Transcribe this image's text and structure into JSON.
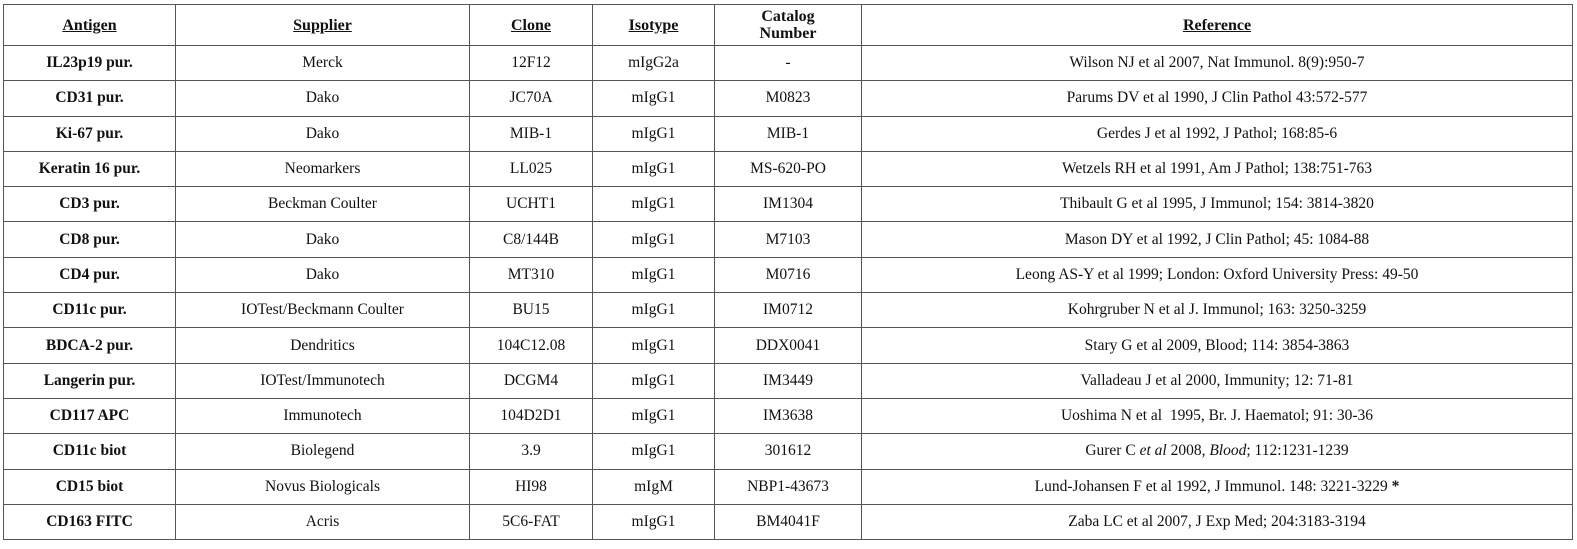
{
  "headers": [
    "Antigen",
    "Supplier",
    "Clone",
    "Isotype",
    "Catalog Number",
    "Reference"
  ],
  "rows": [
    {
      "antigen": "IL23p19 pur.",
      "supplier": "Merck",
      "clone": "12F12",
      "isotype": "mIgG2a",
      "catalog": "-",
      "reference": [
        {
          "text": "Wilson NJ et al 2007, Nat Immunol. 8(9):950-7"
        }
      ]
    },
    {
      "antigen": "CD31 pur.",
      "supplier": "Dako",
      "clone": "JC70A",
      "isotype": "mIgG1",
      "catalog": "M0823",
      "reference": [
        {
          "text": "Parums DV et al 1990, J Clin Pathol 43:572-577"
        }
      ]
    },
    {
      "antigen": "Ki-67 pur.",
      "supplier": "Dako",
      "clone": "MIB-1",
      "isotype": "mIgG1",
      "catalog": "MIB-1",
      "reference": [
        {
          "text": "Gerdes J et al 1992, J Pathol; 168:85-6"
        }
      ]
    },
    {
      "antigen": "Keratin 16 pur.",
      "supplier": "Neomarkers",
      "clone": "LL025",
      "isotype": "mIgG1",
      "catalog": "MS-620-PO",
      "reference": [
        {
          "text": "Wetzels RH et al 1991, Am J Pathol; 138:751-763"
        }
      ]
    },
    {
      "antigen": "CD3 pur.",
      "supplier": "Beckman Coulter",
      "clone": "UCHT1",
      "isotype": "mIgG1",
      "catalog": "IM1304",
      "reference": [
        {
          "text": "Thibault G et al 1995, J Immunol; 154: 3814-3820"
        }
      ]
    },
    {
      "antigen": "CD8 pur.",
      "supplier": "Dako",
      "clone": "C8/144B",
      "isotype": "mIgG1",
      "catalog": "M7103",
      "reference": [
        {
          "text": "Mason DY et al 1992, J Clin Pathol; 45: 1084-88"
        }
      ]
    },
    {
      "antigen": "CD4 pur.",
      "supplier": "Dako",
      "clone": "MT310",
      "isotype": "mIgG1",
      "catalog": "M0716",
      "reference": [
        {
          "text": "Leong AS-Y et al 1999; London: Oxford University Press: 49-50"
        }
      ]
    },
    {
      "antigen": "CD11c pur.",
      "supplier": "IOTest/Beckmann Coulter",
      "clone": "BU15",
      "isotype": "mIgG1",
      "catalog": "IM0712",
      "reference": [
        {
          "text": "Kohrgruber N et al J. Immunol; 163: 3250-3259"
        }
      ]
    },
    {
      "antigen": "BDCA-2 pur.",
      "supplier": "Dendritics",
      "clone": "104C12.08",
      "isotype": "mIgG1",
      "catalog": "DDX0041",
      "reference": [
        {
          "text": "Stary G et al 2009, Blood; 114: 3854-3863"
        }
      ]
    },
    {
      "antigen": "Langerin pur.",
      "supplier": "IOTest/Immunotech",
      "clone": "DCGM4",
      "isotype": "mIgG1",
      "catalog": "IM3449",
      "reference": [
        {
          "text": "Valladeau J et al 2000, Immunity; 12: 71-81"
        }
      ]
    },
    {
      "antigen": "CD117 APC",
      "supplier": "Immunotech",
      "clone": "104D2D1",
      "isotype": "mIgG1",
      "catalog": "IM3638",
      "reference": [
        {
          "text": "Uoshima N et al  1995, Br. J. Haematol; 91: 30-36"
        }
      ]
    },
    {
      "antigen": "CD11c biot",
      "supplier": "Biolegend",
      "clone": "3.9",
      "isotype": "mIgG1",
      "catalog": "301612",
      "reference": [
        {
          "text": "Gurer C "
        },
        {
          "text": "et al",
          "italic": true
        },
        {
          "text": " 2008, "
        },
        {
          "text": "Blood",
          "italic": true
        },
        {
          "text": "; 112:1231-1239"
        }
      ]
    },
    {
      "antigen": "CD15 biot",
      "supplier": "Novus Biologicals",
      "clone": "HI98",
      "isotype": "mIgM",
      "catalog": "NBP1-43673",
      "reference": [
        {
          "text": "Lund-Johansen F et al 1992, J Immunol. 148: 3221-3229 "
        },
        {
          "text": "*",
          "bold": true
        }
      ]
    },
    {
      "antigen": "CD163 FITC",
      "supplier": "Acris",
      "clone": "5C6-FAT",
      "isotype": "mIgG1",
      "catalog": "BM4041F",
      "reference": [
        {
          "text": "Zaba LC et al 2007, J Exp Med; 204:3183-3194"
        }
      ]
    }
  ]
}
